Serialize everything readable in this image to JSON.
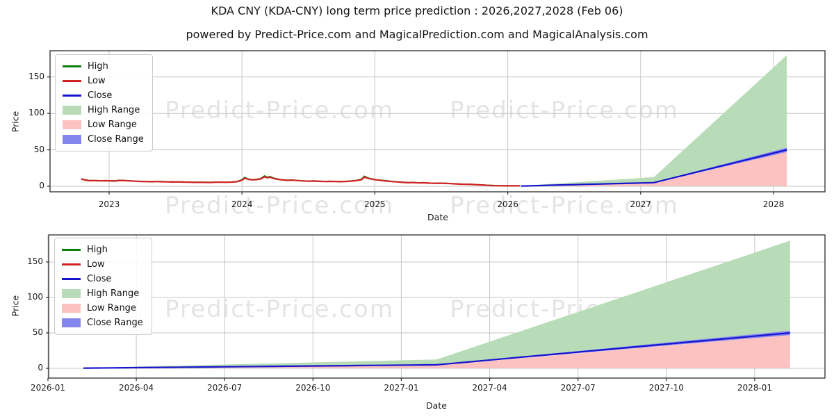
{
  "header": {
    "title": "KDA CNY (KDA-CNY) long term price prediction : 2026,2027,2028 (Feb 06)",
    "subtitle": "powered by Predict-Price.com and MagicalPrediction.com and MagicalAnalysis.com"
  },
  "watermark_text": "Predict-Price.com",
  "colors": {
    "high_line": "#0a800a",
    "low_line": "#d12222",
    "close_line": "#1414cd",
    "high_fill": "#b7dcb7",
    "low_fill": "#fcc1c1",
    "close_fill": "#8585ee",
    "grid": "#c6c6c6",
    "spine": "#2b2b2b",
    "watermark": "#e4e4e4"
  },
  "legend": {
    "items": [
      {
        "label": "High",
        "type": "line",
        "color_key": "high_line"
      },
      {
        "label": "Low",
        "type": "line",
        "color_key": "low_line"
      },
      {
        "label": "Close",
        "type": "line",
        "color_key": "close_line"
      },
      {
        "label": "High Range",
        "type": "patch",
        "color_key": "high_fill"
      },
      {
        "label": "Low Range",
        "type": "patch",
        "color_key": "low_fill"
      },
      {
        "label": "Close Range",
        "type": "patch",
        "color_key": "close_fill"
      }
    ]
  },
  "chart_data": [
    {
      "type": "line",
      "name": "full-history-and-prediction",
      "xlabel": "Date",
      "ylabel": "Price",
      "x_ticks": [
        "2023",
        "2024",
        "2025",
        "2026",
        "2027",
        "2028"
      ],
      "x_tick_values": [
        2023,
        2024,
        2025,
        2026,
        2027,
        2028
      ],
      "y_ticks": [
        0,
        50,
        100,
        150
      ],
      "ylim": [
        -8,
        185
      ],
      "xlim_years": [
        2022.55,
        2028.4
      ],
      "legend_position": "upper left",
      "grid": true,
      "historical_series_note": "triples of [yearFraction, low, high]; close overlaps low/high",
      "historical": [
        [
          2022.79,
          9.8,
          10.1
        ],
        [
          2022.82,
          8.6,
          9.0
        ],
        [
          2022.85,
          7.5,
          7.9
        ],
        [
          2022.88,
          7.8,
          8.0
        ],
        [
          2022.91,
          7.6,
          7.8
        ],
        [
          2022.94,
          7.4,
          7.6
        ],
        [
          2022.97,
          7.6,
          7.8
        ],
        [
          2023.0,
          7.5,
          7.7
        ],
        [
          2023.04,
          7.2,
          7.5
        ],
        [
          2023.08,
          7.9,
          8.3
        ],
        [
          2023.12,
          7.7,
          8.0
        ],
        [
          2023.16,
          7.3,
          7.5
        ],
        [
          2023.2,
          6.9,
          7.1
        ],
        [
          2023.24,
          6.6,
          6.8
        ],
        [
          2023.28,
          6.4,
          6.6
        ],
        [
          2023.32,
          6.2,
          6.4
        ],
        [
          2023.36,
          6.5,
          6.7
        ],
        [
          2023.4,
          6.2,
          6.4
        ],
        [
          2023.44,
          6.0,
          6.2
        ],
        [
          2023.48,
          5.8,
          6.0
        ],
        [
          2023.52,
          5.9,
          6.1
        ],
        [
          2023.56,
          5.7,
          5.9
        ],
        [
          2023.6,
          5.5,
          5.7
        ],
        [
          2023.64,
          5.3,
          5.5
        ],
        [
          2023.68,
          5.4,
          5.6
        ],
        [
          2023.72,
          5.3,
          5.5
        ],
        [
          2023.76,
          5.2,
          5.4
        ],
        [
          2023.8,
          5.5,
          5.7
        ],
        [
          2023.84,
          5.6,
          5.8
        ],
        [
          2023.88,
          5.4,
          5.6
        ],
        [
          2023.92,
          5.7,
          5.9
        ],
        [
          2023.96,
          6.2,
          6.6
        ],
        [
          2024.0,
          8.2,
          9.0
        ],
        [
          2024.02,
          11.0,
          12.1
        ],
        [
          2024.05,
          9.4,
          9.8
        ],
        [
          2024.08,
          8.8,
          9.1
        ],
        [
          2024.11,
          9.2,
          9.6
        ],
        [
          2024.14,
          10.0,
          10.6
        ],
        [
          2024.17,
          13.0,
          14.3
        ],
        [
          2024.19,
          11.6,
          12.4
        ],
        [
          2024.21,
          12.4,
          13.4
        ],
        [
          2024.24,
          10.6,
          11.2
        ],
        [
          2024.27,
          9.5,
          9.9
        ],
        [
          2024.3,
          8.8,
          9.1
        ],
        [
          2024.34,
          8.1,
          8.4
        ],
        [
          2024.38,
          8.4,
          8.7
        ],
        [
          2024.42,
          7.8,
          8.0
        ],
        [
          2024.46,
          7.3,
          7.5
        ],
        [
          2024.5,
          6.9,
          7.1
        ],
        [
          2024.54,
          7.2,
          7.4
        ],
        [
          2024.58,
          6.8,
          7.0
        ],
        [
          2024.62,
          6.5,
          6.7
        ],
        [
          2024.66,
          6.7,
          6.9
        ],
        [
          2024.7,
          6.6,
          6.8
        ],
        [
          2024.74,
          6.3,
          6.5
        ],
        [
          2024.78,
          6.6,
          6.8
        ],
        [
          2024.82,
          7.0,
          7.3
        ],
        [
          2024.86,
          7.7,
          8.1
        ],
        [
          2024.9,
          9.0,
          9.8
        ],
        [
          2024.92,
          12.6,
          13.8
        ],
        [
          2024.95,
          10.8,
          11.4
        ],
        [
          2024.98,
          9.6,
          10.0
        ],
        [
          2025.01,
          8.8,
          9.1
        ],
        [
          2025.05,
          8.0,
          8.3
        ],
        [
          2025.09,
          7.1,
          7.4
        ],
        [
          2025.13,
          6.5,
          6.7
        ],
        [
          2025.17,
          5.9,
          6.1
        ],
        [
          2025.21,
          5.3,
          5.5
        ],
        [
          2025.25,
          4.9,
          5.1
        ],
        [
          2025.29,
          5.1,
          5.3
        ],
        [
          2025.33,
          4.6,
          4.8
        ],
        [
          2025.37,
          4.8,
          5.0
        ],
        [
          2025.41,
          4.3,
          4.5
        ],
        [
          2025.45,
          4.0,
          4.2
        ],
        [
          2025.49,
          4.2,
          4.4
        ],
        [
          2025.53,
          3.9,
          4.1
        ],
        [
          2025.57,
          3.6,
          3.8
        ],
        [
          2025.61,
          3.2,
          3.4
        ],
        [
          2025.65,
          2.9,
          3.1
        ],
        [
          2025.69,
          2.7,
          2.9
        ],
        [
          2025.73,
          2.5,
          2.7
        ],
        [
          2025.77,
          2.1,
          2.3
        ],
        [
          2025.81,
          1.7,
          1.9
        ],
        [
          2025.85,
          1.2,
          1.4
        ],
        [
          2025.89,
          0.9,
          1.1
        ],
        [
          2025.93,
          0.8,
          0.9
        ],
        [
          2025.97,
          0.7,
          0.8
        ],
        [
          2026.01,
          0.6,
          0.7
        ],
        [
          2026.05,
          0.6,
          0.7
        ],
        [
          2026.09,
          0.6,
          0.7
        ]
      ],
      "prediction": {
        "start_label": "2026-02-06",
        "end_label": "2028-02-06",
        "months_since_2026_01": [
          1.2,
          2.2,
          3.2,
          4.2,
          5.2,
          6.2,
          7.2,
          8.2,
          9.2,
          10.2,
          11.2,
          12.2,
          13.2,
          14.2,
          15.2,
          16.2,
          17.2,
          18.2,
          19.2,
          20.2,
          21.2,
          22.2,
          23.2,
          24.2,
          25.2
        ],
        "close": [
          0.3,
          0.69,
          1.08,
          1.48,
          1.87,
          2.26,
          2.65,
          3.04,
          3.43,
          3.83,
          4.22,
          4.61,
          5,
          8.75,
          12.5,
          16.25,
          20,
          23.75,
          27.5,
          31.25,
          35,
          38.75,
          42.5,
          46.25,
          50
        ],
        "high_range_top": [
          0.6,
          1.59,
          2.58,
          3.58,
          4.57,
          5.56,
          6.55,
          7.54,
          8.53,
          9.53,
          10.52,
          11.51,
          12.5,
          26.46,
          40.42,
          54.37,
          68.33,
          82.29,
          96.25,
          110.21,
          124.17,
          138.12,
          152.08,
          166.04,
          180
        ],
        "low_range_top": [
          0.2,
          0.52,
          0.84,
          1.15,
          1.47,
          1.79,
          2.11,
          2.42,
          2.74,
          3.06,
          3.38,
          3.69,
          4,
          7.58,
          11.17,
          14.75,
          18.33,
          21.92,
          25.5,
          29.08,
          32.67,
          36.25,
          39.83,
          43.42,
          47
        ],
        "low_range_bottom": 0.15,
        "close_band_half": [
          0.05,
          0.09,
          0.13,
          0.16,
          0.2,
          0.24,
          0.28,
          0.31,
          0.35,
          0.39,
          0.43,
          0.46,
          0.5,
          0.71,
          0.92,
          1.13,
          1.33,
          1.54,
          1.75,
          1.96,
          2.17,
          2.38,
          2.58,
          2.79,
          3
        ]
      }
    },
    {
      "type": "line",
      "name": "prediction-zoom",
      "xlabel": "Date",
      "ylabel": "Price",
      "x_ticks": [
        "2026-01",
        "2026-04",
        "2026-07",
        "2026-10",
        "2027-01",
        "2027-04",
        "2027-07",
        "2027-10",
        "2028-01"
      ],
      "x_tick_values_months": [
        0,
        3,
        6,
        9,
        12,
        15,
        18,
        21,
        24
      ],
      "y_ticks": [
        0,
        50,
        100,
        150
      ],
      "ylim": [
        -14,
        188
      ],
      "grid": true,
      "legend_position": "upper left",
      "prediction_source": "same as chart 0 prediction"
    }
  ]
}
